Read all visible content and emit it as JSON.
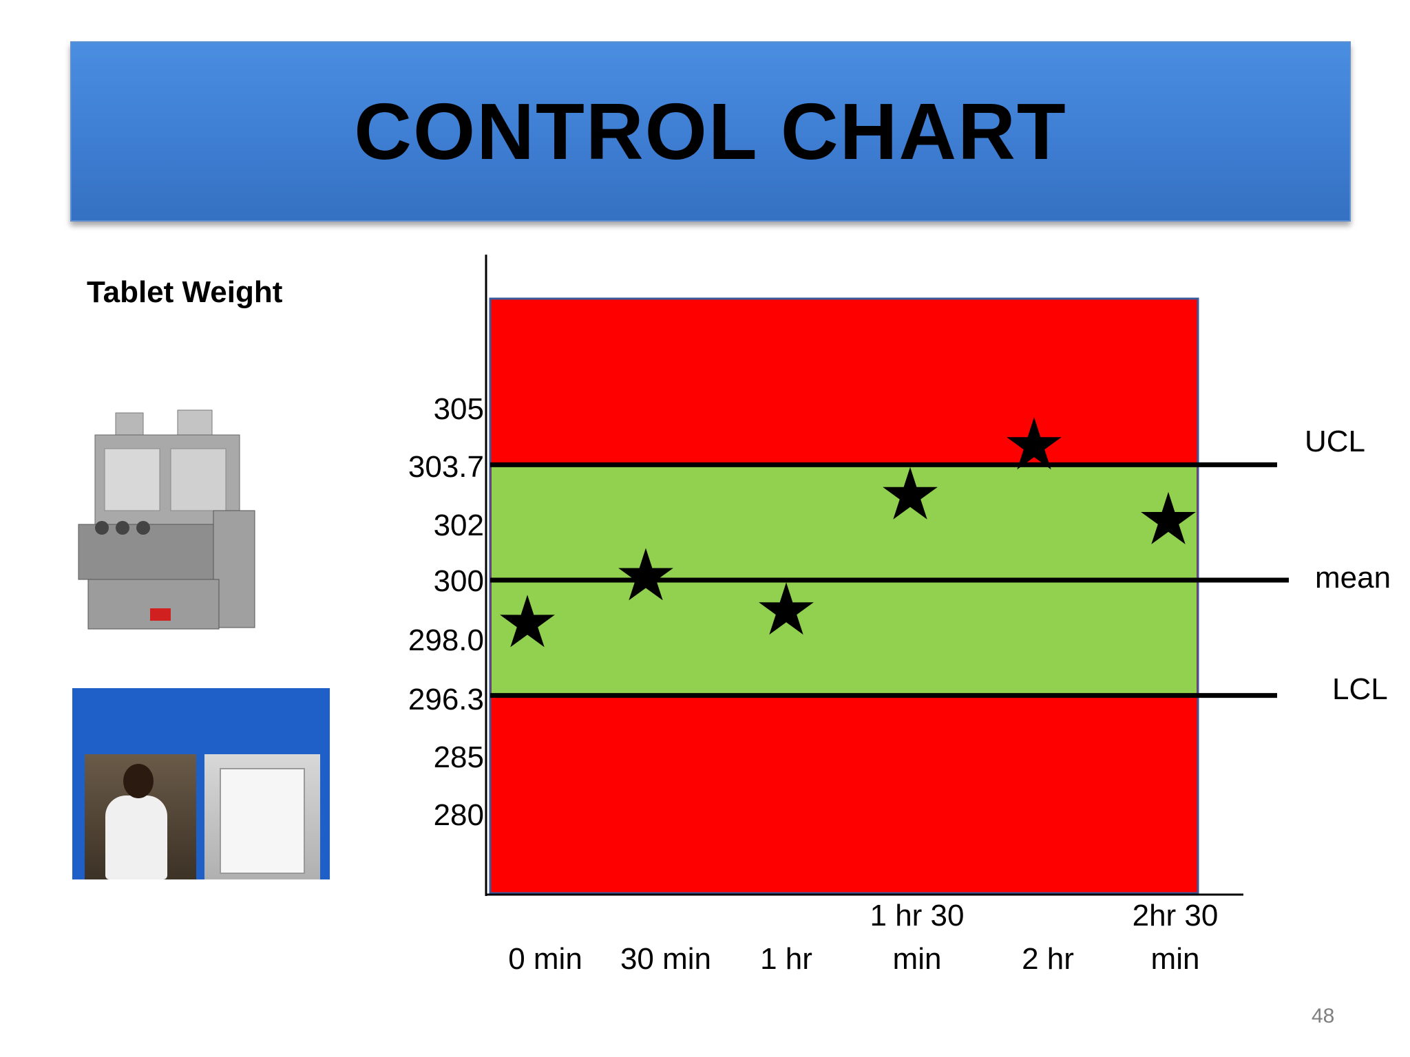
{
  "slide": {
    "title": "CONTROL CHART",
    "subtitle": "Tablet Weight",
    "page_number": "48"
  },
  "images": {
    "machine_icon": "tablet-press-machine",
    "lab_icon": "lab-weighing-photo"
  },
  "colors": {
    "banner": "#3f7fd4",
    "control_zone": "#92d050",
    "out_of_control_zone": "#ff0000",
    "line": "#000000",
    "marker": "#000000"
  },
  "chart_data": {
    "type": "scatter",
    "title": "",
    "xlabel": "",
    "ylabel": "",
    "marker": "star",
    "categories": [
      "0 min",
      "30 min",
      "1 hr",
      "1 hr 30 min",
      "2 hr",
      "2hr 30 min"
    ],
    "y_ticks": [
      "305",
      "303.7",
      "302",
      "300",
      "298.0",
      "296.3",
      "285",
      "280"
    ],
    "values": [
      298.6,
      300.1,
      299.0,
      302.7,
      304.3,
      301.9
    ],
    "limits": [
      {
        "label": "UCL",
        "value": 303.7
      },
      {
        "label": "mean",
        "value": 300
      },
      {
        "label": "LCL",
        "value": 296.3
      }
    ],
    "zones": [
      {
        "from": 296.3,
        "to": 303.7,
        "color": "#92d050"
      },
      {
        "from": 303.7,
        "to": "top",
        "color": "#ff0000"
      },
      {
        "from": "bottom",
        "to": 296.3,
        "color": "#ff0000"
      }
    ],
    "grid": false
  }
}
